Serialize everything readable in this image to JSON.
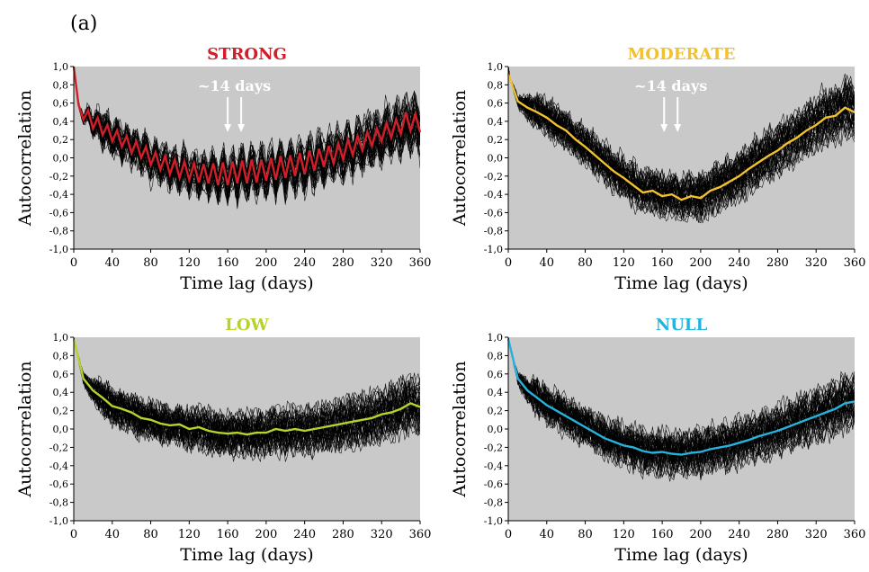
{
  "figure": {
    "panel_tag": "(a)"
  },
  "chart_data": [
    {
      "type": "line",
      "title": "STRONG",
      "title_color": "#d11f2a",
      "mean_color": "#d11f2a",
      "background": "#c9c9c9",
      "xlabel": "Time lag (days)",
      "ylabel": "Autocorrelation",
      "xlim": [
        0,
        360
      ],
      "ylim": [
        -1,
        1
      ],
      "xticks": [
        "0",
        "40",
        "80",
        "120",
        "160",
        "200",
        "240",
        "280",
        "320",
        "360"
      ],
      "yticks": [
        "1,0",
        "0,8",
        "0,6",
        "0,4",
        "0,2",
        "0,0",
        "-0,2",
        "-0,4",
        "-0,6",
        "-0,8",
        "-1,0"
      ],
      "annotation": {
        "text": "~14 days",
        "arrow_x": [
          160,
          174
        ]
      },
      "series": [
        {
          "x": [
            0,
            5,
            10,
            15,
            20,
            25,
            30,
            35,
            40,
            45,
            50,
            55,
            60,
            65,
            70,
            75,
            80,
            85,
            90,
            95,
            100,
            105,
            110,
            115,
            120,
            125,
            130,
            135,
            140,
            145,
            150,
            155,
            160,
            165,
            170,
            175,
            180,
            185,
            190,
            195,
            200,
            205,
            210,
            215,
            220,
            225,
            230,
            235,
            240,
            245,
            250,
            255,
            260,
            265,
            270,
            275,
            280,
            285,
            290,
            295,
            300,
            305,
            310,
            315,
            320,
            325,
            330,
            335,
            340,
            345,
            350,
            355,
            360
          ],
          "y": [
            1.0,
            0.58,
            0.42,
            0.52,
            0.32,
            0.44,
            0.25,
            0.36,
            0.18,
            0.3,
            0.12,
            0.24,
            0.05,
            0.18,
            0.0,
            0.12,
            -0.08,
            0.06,
            -0.13,
            0.02,
            -0.18,
            -0.02,
            -0.22,
            -0.04,
            -0.24,
            -0.06,
            -0.27,
            -0.07,
            -0.28,
            -0.06,
            -0.3,
            -0.05,
            -0.3,
            -0.04,
            -0.28,
            -0.03,
            -0.28,
            -0.02,
            -0.27,
            -0.02,
            -0.25,
            0.0,
            -0.24,
            0.02,
            -0.22,
            0.03,
            -0.2,
            0.05,
            -0.18,
            0.08,
            -0.14,
            0.1,
            -0.1,
            0.13,
            -0.06,
            0.16,
            -0.02,
            0.2,
            0.03,
            0.24,
            0.08,
            0.28,
            0.13,
            0.32,
            0.18,
            0.38,
            0.22,
            0.42,
            0.26,
            0.5,
            0.3,
            0.48,
            0.28
          ]
        }
      ]
    },
    {
      "type": "line",
      "title": "MODERATE",
      "title_color": "#f2c12e",
      "mean_color": "#f2c12e",
      "background": "#c9c9c9",
      "xlabel": "Time lag (days)",
      "ylabel": "Autocorrelation",
      "xlim": [
        0,
        360
      ],
      "ylim": [
        -1,
        1
      ],
      "xticks": [
        "0",
        "40",
        "80",
        "120",
        "160",
        "200",
        "240",
        "280",
        "320",
        "360"
      ],
      "yticks": [
        "1,0",
        "0,8",
        "0,6",
        "0,4",
        "0,2",
        "0,0",
        "-0,2",
        "-0,4",
        "-0,6",
        "-0,8",
        "-1,0"
      ],
      "annotation": {
        "text": "~14 days",
        "arrow_x": [
          162,
          176
        ]
      },
      "series": [
        {
          "x": [
            0,
            10,
            20,
            30,
            40,
            50,
            60,
            70,
            80,
            90,
            100,
            110,
            120,
            130,
            140,
            150,
            160,
            170,
            180,
            190,
            200,
            210,
            220,
            230,
            240,
            250,
            260,
            270,
            280,
            290,
            300,
            310,
            320,
            330,
            340,
            350,
            360
          ],
          "y": [
            0.92,
            0.62,
            0.55,
            0.5,
            0.44,
            0.36,
            0.3,
            0.2,
            0.12,
            0.03,
            -0.06,
            -0.15,
            -0.22,
            -0.3,
            -0.38,
            -0.36,
            -0.42,
            -0.4,
            -0.46,
            -0.42,
            -0.44,
            -0.36,
            -0.32,
            -0.26,
            -0.2,
            -0.12,
            -0.05,
            0.02,
            0.08,
            0.16,
            0.22,
            0.3,
            0.36,
            0.44,
            0.46,
            0.55,
            0.5
          ]
        }
      ]
    },
    {
      "type": "line",
      "title": "LOW",
      "title_color": "#b7d22b",
      "mean_color": "#b7d22b",
      "background": "#c9c9c9",
      "xlabel": "Time lag (days)",
      "ylabel": "Autocorrelation",
      "xlim": [
        0,
        360
      ],
      "ylim": [
        -1,
        1
      ],
      "xticks": [
        "0",
        "40",
        "80",
        "120",
        "160",
        "200",
        "240",
        "280",
        "320",
        "360"
      ],
      "yticks": [
        "1,0",
        "0,8",
        "0,6",
        "0,4",
        "0,2",
        "0,0",
        "-0,2",
        "-0,4",
        "-0,6",
        "-0,8",
        "-1,0"
      ],
      "series": [
        {
          "x": [
            0,
            10,
            20,
            30,
            40,
            50,
            60,
            70,
            80,
            90,
            100,
            110,
            120,
            130,
            140,
            150,
            160,
            170,
            180,
            190,
            200,
            210,
            220,
            230,
            240,
            250,
            260,
            270,
            280,
            290,
            300,
            310,
            320,
            330,
            340,
            350,
            360
          ],
          "y": [
            0.98,
            0.55,
            0.42,
            0.34,
            0.25,
            0.22,
            0.18,
            0.12,
            0.1,
            0.06,
            0.04,
            0.05,
            0.0,
            0.02,
            -0.02,
            -0.04,
            -0.05,
            -0.04,
            -0.06,
            -0.04,
            -0.04,
            0.0,
            -0.02,
            0.0,
            -0.02,
            0.0,
            0.02,
            0.04,
            0.06,
            0.08,
            0.1,
            0.12,
            0.16,
            0.18,
            0.22,
            0.28,
            0.24
          ]
        }
      ]
    },
    {
      "type": "line",
      "title": "NULL",
      "title_color": "#27b2dc",
      "mean_color": "#27b2dc",
      "background": "#c9c9c9",
      "xlabel": "Time lag (days)",
      "ylabel": "Autocorrelation",
      "xlim": [
        0,
        360
      ],
      "ylim": [
        -1,
        1
      ],
      "xticks": [
        "0",
        "40",
        "80",
        "120",
        "160",
        "200",
        "240",
        "280",
        "320",
        "360"
      ],
      "yticks": [
        "1,0",
        "0,8",
        "0,6",
        "0,4",
        "0,2",
        "0,0",
        "-0,2",
        "-0,4",
        "-0,6",
        "-0,8",
        "-1,0"
      ],
      "series": [
        {
          "x": [
            0,
            10,
            20,
            30,
            40,
            50,
            60,
            70,
            80,
            90,
            100,
            110,
            120,
            130,
            140,
            150,
            160,
            170,
            180,
            190,
            200,
            210,
            220,
            230,
            240,
            250,
            260,
            270,
            280,
            290,
            300,
            310,
            320,
            330,
            340,
            350,
            360
          ],
          "y": [
            0.98,
            0.55,
            0.42,
            0.34,
            0.26,
            0.2,
            0.14,
            0.08,
            0.02,
            -0.04,
            -0.1,
            -0.14,
            -0.18,
            -0.2,
            -0.24,
            -0.26,
            -0.25,
            -0.27,
            -0.28,
            -0.26,
            -0.25,
            -0.22,
            -0.2,
            -0.18,
            -0.15,
            -0.12,
            -0.08,
            -0.05,
            -0.02,
            0.02,
            0.06,
            0.1,
            0.14,
            0.18,
            0.22,
            0.28,
            0.3
          ]
        }
      ]
    }
  ]
}
